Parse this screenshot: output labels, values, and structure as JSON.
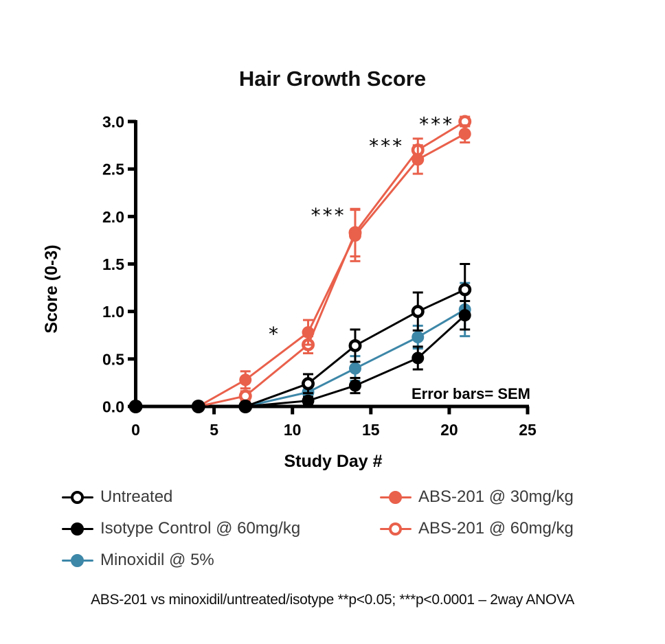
{
  "title": "Hair Growth Score",
  "colors": {
    "abs_red": "#E9604B",
    "minoxidil_blue": "#3D87A8",
    "black": "#000000",
    "legend_text": "#3A3A3A"
  },
  "chart_data": {
    "type": "line",
    "title": "Hair Growth Score",
    "xlabel": "Study Day #",
    "ylabel": "Score (0-3)",
    "xlim": [
      0,
      25
    ],
    "ylim": [
      0,
      3
    ],
    "grid": false,
    "legend_position": "bottom",
    "xticks": [
      0,
      5,
      10,
      15,
      20,
      25
    ],
    "xtick_labels": [
      "0",
      "5",
      "10",
      "15",
      "20",
      "25"
    ],
    "yticks": [
      0,
      0.5,
      1,
      1.5,
      2,
      2.5,
      3
    ],
    "ytick_labels": [
      "0.0",
      "0.5",
      "1.0",
      "1.5",
      "2.0",
      "2.5",
      "3.0"
    ],
    "x": [
      0,
      4,
      7,
      11,
      14,
      18,
      21
    ],
    "series": [
      {
        "name": "Untreated",
        "marker": "open",
        "color": "#000000",
        "values": [
          0,
          0,
          0,
          0.24,
          0.64,
          1.0,
          1.23
        ],
        "sem": [
          0,
          0,
          0,
          0.1,
          0.17,
          0.2,
          0.27
        ]
      },
      {
        "name": "Isotype Control @ 60mg/kg",
        "marker": "filled",
        "color": "#000000",
        "values": [
          0,
          0,
          0,
          0.06,
          0.22,
          0.51,
          0.96
        ],
        "sem": [
          0,
          0,
          0,
          0.04,
          0.08,
          0.12,
          0.15
        ]
      },
      {
        "name": "Minoxidil @ 5%",
        "marker": "filled",
        "color": "#3D87A8",
        "values": [
          0,
          0,
          0,
          0.15,
          0.4,
          0.73,
          1.02
        ],
        "sem": [
          0,
          0,
          0,
          0.06,
          0.13,
          0.12,
          0.28
        ]
      },
      {
        "name": "ABS-201 @ 30mg/kg",
        "marker": "filled",
        "color": "#E9604B",
        "values": [
          0,
          0,
          0.28,
          0.78,
          1.8,
          2.6,
          2.87
        ],
        "sem": [
          0,
          0,
          0.09,
          0.13,
          0.27,
          0.15,
          0.09
        ]
      },
      {
        "name": "ABS-201 @ 60mg/kg",
        "marker": "open",
        "color": "#E9604B",
        "values": [
          0,
          0,
          0.11,
          0.65,
          1.83,
          2.7,
          3.0
        ],
        "sem": [
          0,
          0,
          0.05,
          0.09,
          0.25,
          0.12,
          0.05
        ]
      }
    ],
    "draw_order": [
      4,
      3,
      2,
      0,
      1
    ],
    "annotations": [
      {
        "text": "*",
        "x": 8.85,
        "y": 0.78
      },
      {
        "text": "***",
        "x": 12.3,
        "y": 2.03
      },
      {
        "text": "***",
        "x": 16.0,
        "y": 2.76
      },
      {
        "text": "***",
        "x": 19.2,
        "y": 2.99
      }
    ],
    "note": "Error bars= SEM"
  },
  "legend": {
    "items": [
      {
        "label": "Untreated",
        "marker": "open",
        "color": "#000000"
      },
      {
        "label": "Isotype Control @ 60mg/kg",
        "marker": "filled",
        "color": "#000000"
      },
      {
        "label": "Minoxidil @ 5%",
        "marker": "filled",
        "color": "#3D87A8"
      },
      {
        "label": "ABS-201 @ 30mg/kg",
        "marker": "filled",
        "color": "#E9604B"
      },
      {
        "label": "ABS-201 @ 60mg/kg",
        "marker": "open",
        "color": "#E9604B"
      }
    ]
  },
  "footer": {
    "text": "ABS-201 vs minoxidil/untreated/isotype  **p<0.05; ***p<0.0001 – 2way ANOVA"
  }
}
